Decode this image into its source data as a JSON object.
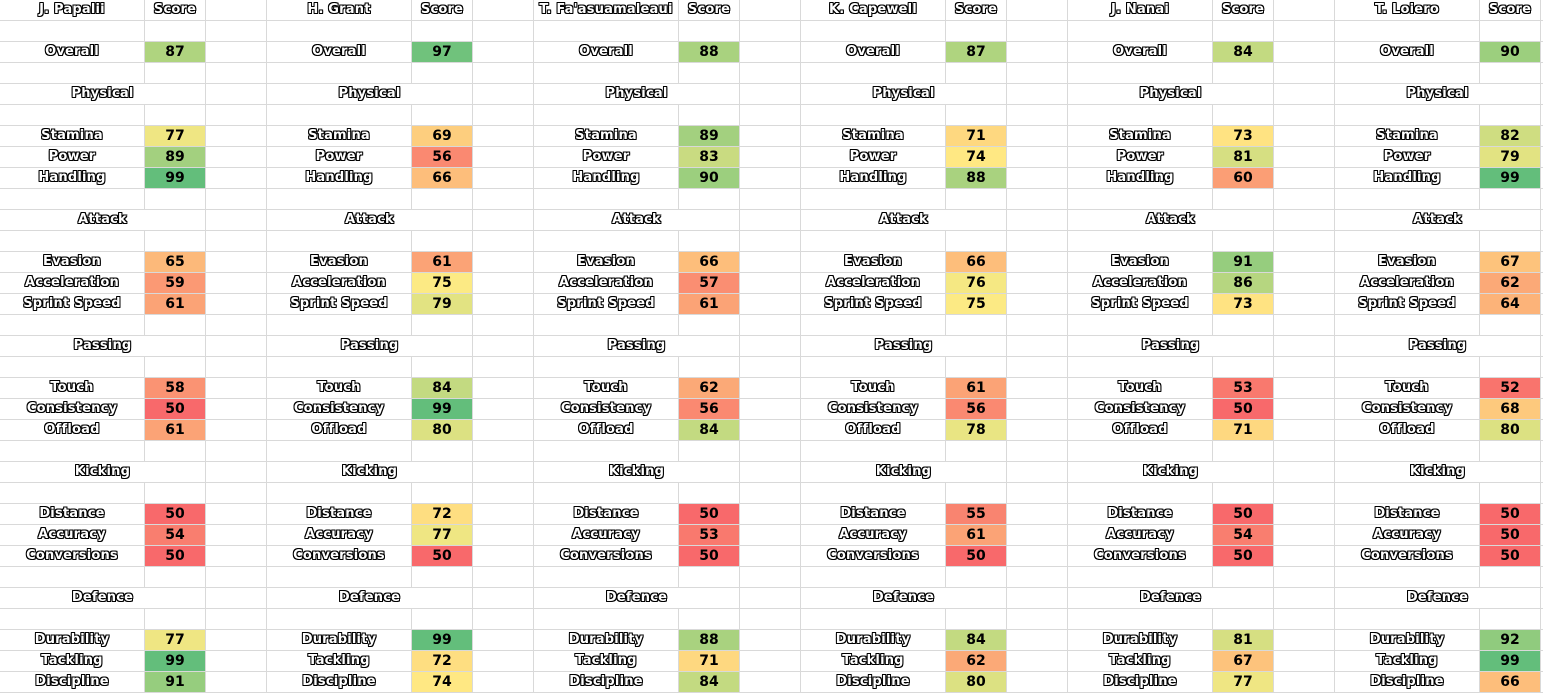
{
  "header_score_label": "Score",
  "rows": [
    {
      "type": "header"
    },
    {
      "type": "blank"
    },
    {
      "type": "stat",
      "label": "Overall",
      "key": "overall"
    },
    {
      "type": "blank"
    },
    {
      "type": "section",
      "label": "Physical"
    },
    {
      "type": "blank"
    },
    {
      "type": "stat",
      "label": "Stamina",
      "key": "stamina"
    },
    {
      "type": "stat",
      "label": "Power",
      "key": "power"
    },
    {
      "type": "stat",
      "label": "Handling",
      "key": "handling"
    },
    {
      "type": "blank"
    },
    {
      "type": "section",
      "label": "Attack"
    },
    {
      "type": "blank"
    },
    {
      "type": "stat",
      "label": "Evasion",
      "key": "evasion"
    },
    {
      "type": "stat",
      "label": "Acceleration",
      "key": "acceleration"
    },
    {
      "type": "stat",
      "label": "Sprint Speed",
      "key": "sprint_speed"
    },
    {
      "type": "blank"
    },
    {
      "type": "section",
      "label": "Passing"
    },
    {
      "type": "blank"
    },
    {
      "type": "stat",
      "label": "Touch",
      "key": "touch"
    },
    {
      "type": "stat",
      "label": "Consistency",
      "key": "consistency"
    },
    {
      "type": "stat",
      "label": "Offload",
      "key": "offload"
    },
    {
      "type": "blank"
    },
    {
      "type": "section",
      "label": "Kicking"
    },
    {
      "type": "blank"
    },
    {
      "type": "stat",
      "label": "Distance",
      "key": "distance"
    },
    {
      "type": "stat",
      "label": "Accuracy",
      "key": "accuracy"
    },
    {
      "type": "stat",
      "label": "Conversions",
      "key": "conversions"
    },
    {
      "type": "blank"
    },
    {
      "type": "section",
      "label": "Defence"
    },
    {
      "type": "blank"
    },
    {
      "type": "stat",
      "label": "Durability",
      "key": "durability"
    },
    {
      "type": "stat",
      "label": "Tackling",
      "key": "tackling"
    },
    {
      "type": "stat",
      "label": "Discipline",
      "key": "discipline"
    }
  ],
  "players": [
    {
      "name": "J. Papalii",
      "scores": {
        "overall": 87,
        "stamina": 77,
        "power": 89,
        "handling": 99,
        "evasion": 65,
        "acceleration": 59,
        "sprint_speed": 61,
        "touch": 58,
        "consistency": 50,
        "offload": 61,
        "distance": 50,
        "accuracy": 54,
        "conversions": 50,
        "durability": 77,
        "tackling": 99,
        "discipline": 91
      }
    },
    {
      "name": "H. Grant",
      "scores": {
        "overall": 97,
        "stamina": 69,
        "power": 56,
        "handling": 66,
        "evasion": 61,
        "acceleration": 75,
        "sprint_speed": 79,
        "touch": 84,
        "consistency": 99,
        "offload": 80,
        "distance": 72,
        "accuracy": 77,
        "conversions": 50,
        "durability": 99,
        "tackling": 72,
        "discipline": 74
      }
    },
    {
      "name": "T. Fa'asuamaleaui",
      "scores": {
        "overall": 88,
        "stamina": 89,
        "power": 83,
        "handling": 90,
        "evasion": 66,
        "acceleration": 57,
        "sprint_speed": 61,
        "touch": 62,
        "consistency": 56,
        "offload": 84,
        "distance": 50,
        "accuracy": 53,
        "conversions": 50,
        "durability": 88,
        "tackling": 71,
        "discipline": 84
      }
    },
    {
      "name": "K. Capewell",
      "scores": {
        "overall": 87,
        "stamina": 71,
        "power": 74,
        "handling": 88,
        "evasion": 66,
        "acceleration": 76,
        "sprint_speed": 75,
        "touch": 61,
        "consistency": 56,
        "offload": 78,
        "distance": 55,
        "accuracy": 61,
        "conversions": 50,
        "durability": 84,
        "tackling": 62,
        "discipline": 80
      }
    },
    {
      "name": "J. Nanai",
      "scores": {
        "overall": 84,
        "stamina": 73,
        "power": 81,
        "handling": 60,
        "evasion": 91,
        "acceleration": 86,
        "sprint_speed": 73,
        "touch": 53,
        "consistency": 50,
        "offload": 71,
        "distance": 50,
        "accuracy": 54,
        "conversions": 50,
        "durability": 81,
        "tackling": 67,
        "discipline": 77
      }
    },
    {
      "name": "T. Loiero",
      "scores": {
        "overall": 90,
        "stamina": 82,
        "power": 79,
        "handling": 99,
        "evasion": 67,
        "acceleration": 62,
        "sprint_speed": 64,
        "touch": 52,
        "consistency": 68,
        "offload": 80,
        "distance": 50,
        "accuracy": 50,
        "conversions": 50,
        "durability": 92,
        "tackling": 99,
        "discipline": 66
      }
    }
  ],
  "colors": {
    "gridline": "#d9d9d9",
    "scale_low": "#f8696b",
    "scale_mid": "#ffeb84",
    "scale_high": "#63be7b"
  }
}
